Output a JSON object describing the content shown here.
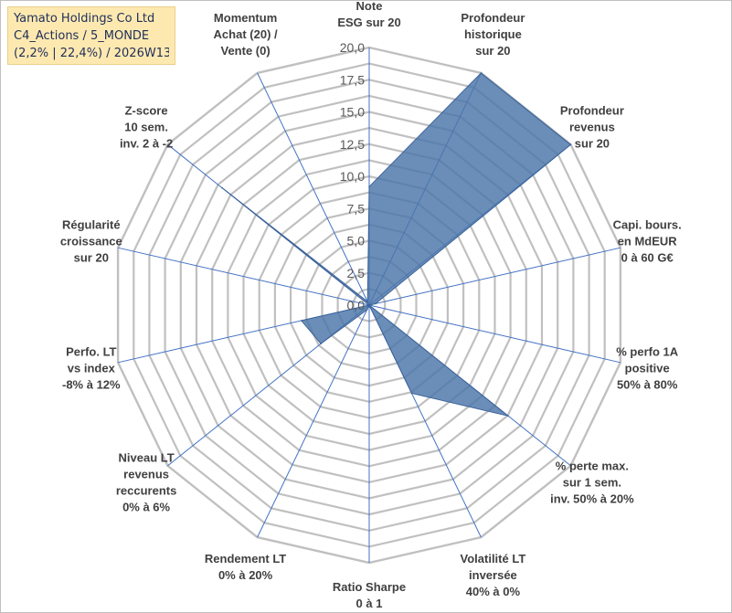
{
  "title_lines": [
    "Yamato Holdings Co Ltd",
    "C4_Actions / 5_MONDE",
    "(2,2% | 22,4%) / 2026W13"
  ],
  "colors": {
    "grid": "#c0c0c0",
    "spoke": "#4472c4",
    "fill": "#4a75aa",
    "title_bg": "#fde9b0"
  },
  "chart_data": {
    "type": "radar",
    "rmin": 0,
    "rmax": 20,
    "tick_labels": [
      "0,0",
      "2,5",
      "5,0",
      "7,5",
      "10,0",
      "12,5",
      "15,0",
      "17,5",
      "20,0"
    ],
    "categories": [
      {
        "lines": [
          "Note",
          "ESG sur 20"
        ]
      },
      {
        "lines": [
          "Profondeur",
          "historique",
          "sur 20"
        ]
      },
      {
        "lines": [
          "Profondeur",
          "revenus",
          "sur 20"
        ]
      },
      {
        "lines": [
          "Capi. bours.",
          "en MdEUR",
          "0 à 60 G€"
        ]
      },
      {
        "lines": [
          "% perfo 1A",
          "positive",
          "50% à 80%"
        ]
      },
      {
        "lines": [
          "% perte max.",
          "sur 1 sem.",
          "inv. 50% à 20%"
        ]
      },
      {
        "lines": [
          "Volatilité LT",
          "inversée",
          "40% à 0%"
        ]
      },
      {
        "lines": [
          "Ratio Sharpe",
          "0 à 1"
        ]
      },
      {
        "lines": [
          "Rendement LT",
          "0% à 20%"
        ]
      },
      {
        "lines": [
          "Niveau LT",
          "revenus",
          "reccurents",
          "0% à 6%"
        ]
      },
      {
        "lines": [
          "Perfo. LT",
          "vs index",
          "-8% à 12%"
        ]
      },
      {
        "lines": [
          "Régularité",
          "croissance",
          "sur 20"
        ]
      },
      {
        "lines": [
          "Z-score",
          "10 sem.",
          "inv. 2 à -2"
        ]
      },
      {
        "lines": [
          "Momentum",
          "Achat (20) /",
          "Vente (0)"
        ]
      }
    ],
    "values": [
      9.2,
      20,
      20,
      0.5,
      0,
      13.8,
      7.6,
      0,
      0.4,
      4.8,
      5.4,
      0,
      14.6,
      0.3
    ]
  }
}
